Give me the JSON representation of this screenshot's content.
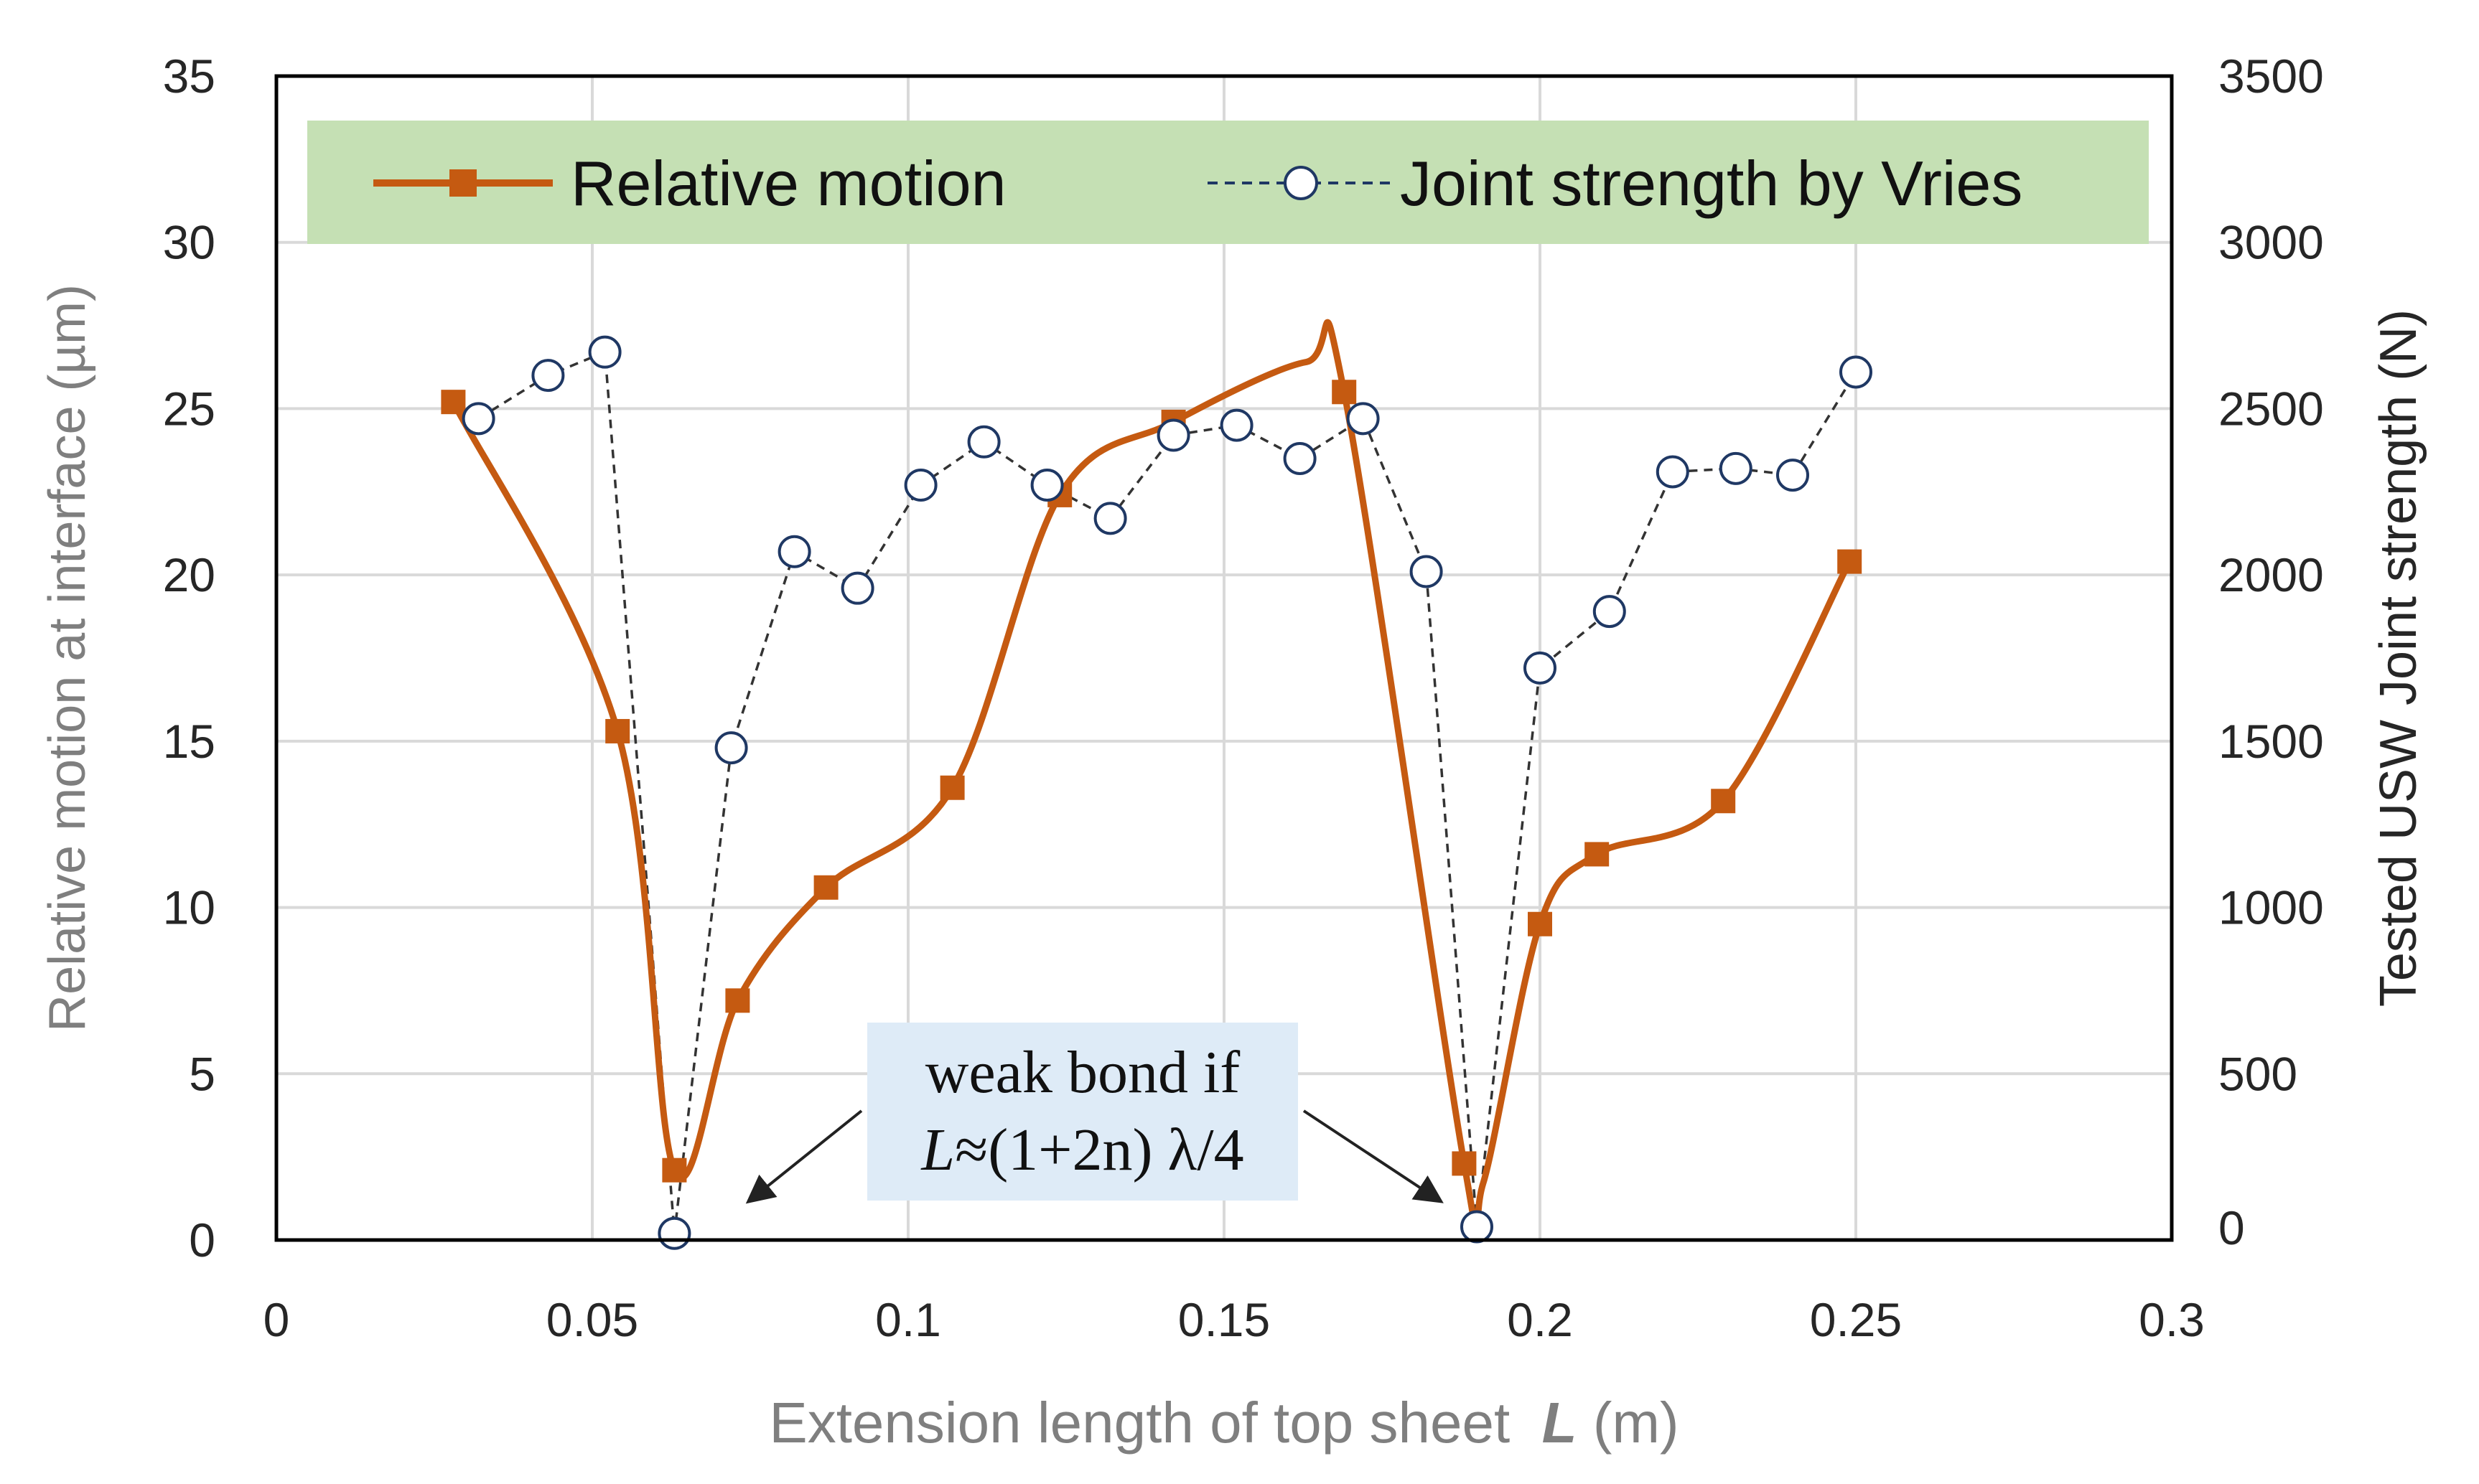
{
  "chart_data": {
    "type": "line",
    "title": "",
    "xlabel": "Extension length of top sheet",
    "xlabel_symbol": "L",
    "xlabel_unit": "(m)",
    "ylabel_left": "Relative motion at  interface (µm)",
    "ylabel_right": "Tested USW Joint strength (N)",
    "xlim": [
      0,
      0.3
    ],
    "ylim_left": [
      0,
      35
    ],
    "ylim_right": [
      0,
      3500
    ],
    "xticks": [
      0,
      0.05,
      0.1,
      0.15,
      0.2,
      0.25,
      0.3
    ],
    "xtick_labels": [
      "0",
      "0.05",
      "0.1",
      "0.15",
      "0.2",
      "0.25",
      "0.3"
    ],
    "yticks_left": [
      0,
      5,
      10,
      15,
      20,
      25,
      30,
      35
    ],
    "ytick_labels_left": [
      "0",
      "5",
      "10",
      "15",
      "20",
      "25",
      "30",
      "35"
    ],
    "yticks_right": [
      0,
      500,
      1000,
      1500,
      2000,
      2500,
      3000,
      3500
    ],
    "ytick_labels_right": [
      "0",
      "500",
      "1000",
      "1500",
      "2000",
      "2500",
      "3000",
      "3500"
    ],
    "grid": true,
    "legend_position": "top",
    "series": [
      {
        "name": "Relative motion",
        "axis": "left",
        "color": "#c55a11",
        "marker": "square",
        "style": "solid-smooth",
        "x": [
          0.028,
          0.054,
          0.063,
          0.073,
          0.087,
          0.107,
          0.124,
          0.142,
          0.169,
          0.188,
          0.2,
          0.209,
          0.229,
          0.249
        ],
        "y": [
          25.2,
          15.3,
          2.1,
          7.2,
          10.6,
          13.6,
          22.4,
          24.6,
          25.5,
          2.3,
          9.5,
          11.6,
          13.2,
          20.4
        ],
        "smooth_extra": [
          [
            0.163,
            26.4
          ],
          [
            0.191,
            1.7
          ]
        ]
      },
      {
        "name": "Joint strength by Vries",
        "axis": "right",
        "color": "#1f3864",
        "marker": "open-circle",
        "style": "dashed",
        "x": [
          0.032,
          0.043,
          0.052,
          0.063,
          0.072,
          0.082,
          0.092,
          0.102,
          0.112,
          0.122,
          0.132,
          0.142,
          0.152,
          0.162,
          0.172,
          0.182,
          0.19,
          0.2,
          0.211,
          0.221,
          0.231,
          0.24,
          0.25
        ],
        "y": [
          2470,
          2600,
          2670,
          20,
          1480,
          2070,
          1960,
          2270,
          2400,
          2270,
          2170,
          2420,
          2450,
          2350,
          2470,
          2010,
          40,
          1720,
          1890,
          2310,
          2320,
          2300,
          2610
        ]
      }
    ],
    "annotation": {
      "line1": "weak bond if",
      "line2_symbol": "L",
      "line2_rest": "≈(1+2n) λ/4",
      "targets_x": [
        0.075,
        0.184
      ],
      "target_y": 1.2
    }
  }
}
